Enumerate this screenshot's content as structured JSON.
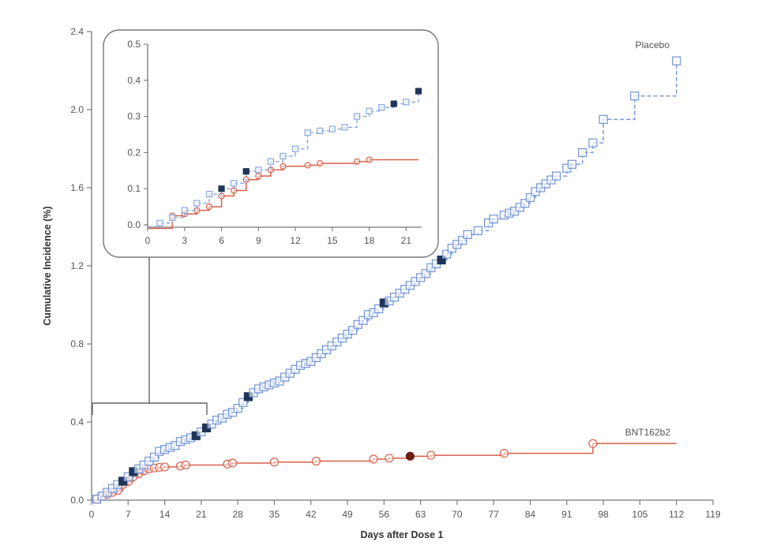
{
  "chart_data": {
    "type": "line",
    "subtype": "step / cumulative incidence",
    "title": "",
    "xlabel": "Days after Dose 1",
    "ylabel": "Cumulative Incidence (%)",
    "xlim": [
      0,
      119
    ],
    "ylim": [
      0,
      2.4
    ],
    "x_ticks": [
      0,
      7,
      14,
      21,
      28,
      35,
      42,
      49,
      56,
      63,
      70,
      77,
      84,
      91,
      98,
      105,
      112,
      119
    ],
    "x_tick_labels": [
      "0",
      "7",
      "14",
      "21",
      "28",
      "35",
      "42",
      "49",
      "56",
      "63",
      "70",
      "77",
      "84",
      "91",
      "98",
      "105",
      "112",
      "119"
    ],
    "y_ticks": [
      0.0,
      0.4,
      0.8,
      1.2,
      1.6,
      2.0,
      2.4
    ],
    "y_tick_labels": [
      "0.0",
      "0.4",
      "0.8",
      "1.2",
      "1.6",
      "2.0",
      "2.4"
    ],
    "grid": false,
    "legend": "direct labels at line ends (right)",
    "series": [
      {
        "name": "Placebo",
        "color": "#6f93d6",
        "marker": "open-square",
        "line_style": "dashed",
        "x": [
          0,
          1,
          2,
          3,
          4,
          5,
          6,
          7,
          8,
          9,
          10,
          11,
          12,
          13,
          14,
          15,
          16,
          17,
          18,
          19,
          20,
          21,
          22,
          23,
          24,
          25,
          26,
          27,
          28,
          29,
          30,
          31,
          32,
          33,
          34,
          35,
          36,
          37,
          38,
          39,
          40,
          41,
          42,
          43,
          44,
          45,
          46,
          47,
          48,
          49,
          50,
          51,
          52,
          53,
          54,
          55,
          56,
          57,
          58,
          59,
          60,
          61,
          62,
          63,
          64,
          65,
          66,
          67,
          68,
          69,
          70,
          71,
          72,
          74,
          76,
          77,
          79,
          80,
          81,
          82,
          83,
          84,
          85,
          86,
          87,
          88,
          89,
          91,
          92,
          94,
          96,
          98,
          104,
          112
        ],
        "y": [
          0,
          0.005,
          0.02,
          0.04,
          0.06,
          0.08,
          0.097,
          0.12,
          0.146,
          0.16,
          0.18,
          0.2,
          0.22,
          0.25,
          0.26,
          0.27,
          0.28,
          0.3,
          0.31,
          0.32,
          0.33,
          0.35,
          0.37,
          0.39,
          0.41,
          0.42,
          0.44,
          0.45,
          0.47,
          0.5,
          0.53,
          0.55,
          0.57,
          0.58,
          0.59,
          0.6,
          0.61,
          0.63,
          0.65,
          0.67,
          0.69,
          0.7,
          0.71,
          0.73,
          0.75,
          0.77,
          0.79,
          0.81,
          0.83,
          0.85,
          0.87,
          0.9,
          0.92,
          0.95,
          0.96,
          0.98,
          1.01,
          1.02,
          1.04,
          1.06,
          1.08,
          1.1,
          1.12,
          1.14,
          1.16,
          1.19,
          1.21,
          1.23,
          1.26,
          1.29,
          1.31,
          1.33,
          1.36,
          1.38,
          1.42,
          1.44,
          1.46,
          1.47,
          1.48,
          1.5,
          1.52,
          1.55,
          1.58,
          1.6,
          1.62,
          1.64,
          1.66,
          1.7,
          1.72,
          1.78,
          1.83,
          1.95,
          2.07,
          2.25
        ],
        "filled_markers_x": [
          6,
          8,
          20,
          22,
          30,
          56,
          67
        ],
        "end_x": 112
      },
      {
        "name": "BNT162b2",
        "color": "#d9604a",
        "marker": "open-circle",
        "line_style": "solid",
        "x": [
          0,
          1,
          2,
          3,
          4,
          5,
          6,
          7,
          8,
          9,
          10,
          11,
          12,
          13,
          14,
          17,
          18,
          26,
          27,
          35,
          43,
          54,
          57,
          61,
          65,
          79,
          96
        ],
        "y": [
          0,
          0.005,
          0.02,
          0.03,
          0.04,
          0.05,
          0.08,
          0.095,
          0.12,
          0.135,
          0.15,
          0.16,
          0.165,
          0.168,
          0.17,
          0.175,
          0.18,
          0.185,
          0.19,
          0.195,
          0.2,
          0.21,
          0.215,
          0.225,
          0.23,
          0.24,
          0.29
        ],
        "filled_markers_x": [
          61
        ],
        "end_x": 112
      }
    ],
    "inset": {
      "type": "line",
      "xlim": [
        0,
        22
      ],
      "ylim": [
        0,
        0.5
      ],
      "x_ticks": [
        0,
        3,
        6,
        9,
        12,
        15,
        18,
        21
      ],
      "x_tick_labels": [
        "0",
        "3",
        "6",
        "9",
        "12",
        "15",
        "18",
        "21"
      ],
      "y_ticks": [
        0.0,
        0.1,
        0.2,
        0.3,
        0.4,
        0.5
      ],
      "y_tick_labels": [
        "0.0",
        "0.1",
        "0.2",
        "0.3",
        "0.4",
        "0.5"
      ],
      "zoom_range_days": [
        0,
        22
      ],
      "series": [
        {
          "name": "Placebo",
          "x": [
            1,
            2,
            3,
            4,
            5,
            6,
            7,
            8,
            9,
            10,
            11,
            12,
            13,
            14,
            15,
            16,
            17,
            18,
            19,
            20,
            21,
            22
          ],
          "y": [
            0.005,
            0.02,
            0.04,
            0.06,
            0.085,
            0.1,
            0.115,
            0.148,
            0.152,
            0.175,
            0.19,
            0.21,
            0.255,
            0.26,
            0.265,
            0.27,
            0.3,
            0.315,
            0.325,
            0.335,
            0.34,
            0.37
          ],
          "filled_markers_x": [
            6,
            8,
            20,
            22
          ]
        },
        {
          "name": "BNT162b2",
          "x": [
            2,
            3,
            4,
            5,
            6,
            7,
            8,
            9,
            10,
            11,
            13,
            14,
            17,
            18
          ],
          "y": [
            0.025,
            0.03,
            0.04,
            0.05,
            0.08,
            0.095,
            0.125,
            0.135,
            0.152,
            0.162,
            0.165,
            0.17,
            0.175,
            0.18
          ],
          "filled_markers_x": [],
          "end_x": 22
        }
      ]
    }
  }
}
